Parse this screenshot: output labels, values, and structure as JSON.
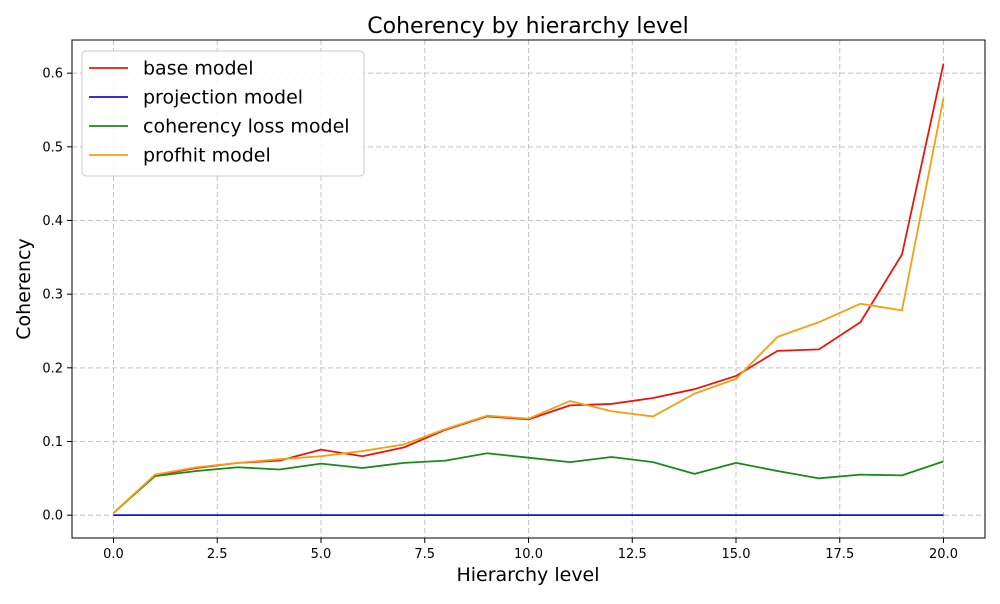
{
  "chart_data": {
    "type": "line",
    "title": "Coherency by hierarchy level",
    "xlabel": "Hierarchy level",
    "ylabel": "Coherency",
    "xlim": [
      -1,
      21
    ],
    "ylim": [
      -0.031,
      0.645
    ],
    "xticks": [
      0.0,
      2.5,
      5.0,
      7.5,
      10.0,
      12.5,
      15.0,
      17.5,
      20.0
    ],
    "xtick_labels": [
      "0.0",
      "2.5",
      "5.0",
      "7.5",
      "10.0",
      "12.5",
      "15.0",
      "17.5",
      "20.0"
    ],
    "yticks": [
      0.0,
      0.1,
      0.2,
      0.3,
      0.4,
      0.5,
      0.6
    ],
    "ytick_labels": [
      "0.0",
      "0.1",
      "0.2",
      "0.3",
      "0.4",
      "0.5",
      "0.6"
    ],
    "grid": true,
    "legend_position": "top-left",
    "x": [
      0,
      1,
      2,
      3,
      4,
      5,
      6,
      7,
      8,
      9,
      10,
      11,
      12,
      13,
      14,
      15,
      16,
      17,
      18,
      19,
      20
    ],
    "series": [
      {
        "name": "base model",
        "color": "#e8170e",
        "values": [
          0.003,
          0.054,
          0.064,
          0.071,
          0.074,
          0.089,
          0.08,
          0.092,
          0.116,
          0.134,
          0.13,
          0.149,
          0.151,
          0.159,
          0.171,
          0.189,
          0.223,
          0.225,
          0.262,
          0.354,
          0.613
        ]
      },
      {
        "name": "projection model",
        "color": "#1515cc",
        "values": [
          0.0,
          0.0,
          0.0,
          0.0,
          0.0,
          0.0,
          0.0,
          0.0,
          0.0,
          0.0,
          0.0,
          0.0,
          0.0,
          0.0,
          0.0,
          0.0,
          0.0,
          0.0,
          0.0,
          0.0,
          0.0
        ]
      },
      {
        "name": "coherency loss model",
        "color": "#1a8a1a",
        "values": [
          0.003,
          0.053,
          0.06,
          0.065,
          0.062,
          0.07,
          0.064,
          0.071,
          0.074,
          0.084,
          0.078,
          0.072,
          0.079,
          0.072,
          0.056,
          0.071,
          0.06,
          0.05,
          0.055,
          0.054,
          0.073
        ]
      },
      {
        "name": "profhit model",
        "color": "#f5a00f",
        "values": [
          0.003,
          0.055,
          0.065,
          0.071,
          0.076,
          0.08,
          0.087,
          0.096,
          0.117,
          0.135,
          0.131,
          0.155,
          0.141,
          0.134,
          0.165,
          0.185,
          0.242,
          0.262,
          0.287,
          0.278,
          0.566
        ]
      }
    ]
  }
}
